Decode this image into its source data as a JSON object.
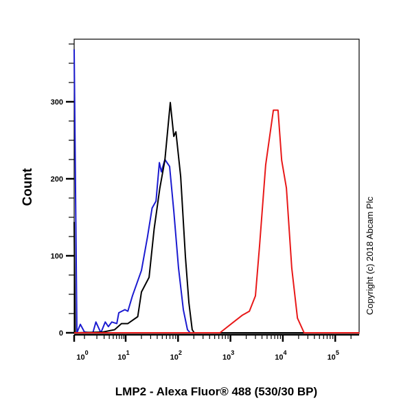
{
  "chart_data": {
    "type": "line",
    "title": "",
    "xlabel": "LMP2 - Alexa Fluor® 488 (530/30 BP)",
    "ylabel": "Count",
    "x_scale": "log (biexponential low end)",
    "xlim": [
      0,
      290000
    ],
    "ylim": [
      0,
      380
    ],
    "y_ticks": [
      0,
      100,
      200,
      300
    ],
    "x_tick_labels": [
      {
        "base": "10",
        "exp": "0",
        "value": 1
      },
      {
        "base": "10",
        "exp": "1",
        "value": 10
      },
      {
        "base": "10",
        "exp": "2",
        "value": 100
      },
      {
        "base": "10",
        "exp": "3",
        "value": 1000
      },
      {
        "base": "10",
        "exp": "4",
        "value": 10000
      },
      {
        "base": "10",
        "exp": "5",
        "value": 100000
      }
    ],
    "grid": false,
    "legend": "none",
    "annotation": "Copyright (c) 2018 Abcam Plc",
    "series": [
      {
        "color": "#1a1ad0",
        "points": [
          [
            0,
            368
          ],
          [
            0.27,
            0
          ],
          [
            0.6,
            11
          ],
          [
            1,
            1
          ],
          [
            1.6,
            0
          ],
          [
            1.9,
            14
          ],
          [
            2.5,
            0
          ],
          [
            3.2,
            14
          ],
          [
            3.8,
            8
          ],
          [
            4.6,
            14
          ],
          [
            6.1,
            12
          ],
          [
            6.8,
            26
          ],
          [
            9.6,
            30
          ],
          [
            11,
            28
          ],
          [
            13.5,
            48
          ],
          [
            20,
            81
          ],
          [
            26,
            124
          ],
          [
            32,
            162
          ],
          [
            38,
            171
          ],
          [
            44,
            221
          ],
          [
            48,
            209
          ],
          [
            56,
            225
          ],
          [
            69,
            216
          ],
          [
            83,
            158
          ],
          [
            102,
            84
          ],
          [
            126,
            30
          ],
          [
            151,
            4
          ],
          [
            170,
            0
          ],
          [
            290000,
            0
          ]
        ]
      },
      {
        "color": "#000000",
        "points": [
          [
            0,
            144
          ],
          [
            0.1,
            0
          ],
          [
            2.8,
            1
          ],
          [
            5.4,
            4
          ],
          [
            7.9,
            12
          ],
          [
            11,
            12
          ],
          [
            17,
            21
          ],
          [
            20,
            53
          ],
          [
            28,
            72
          ],
          [
            35,
            135
          ],
          [
            45,
            188
          ],
          [
            56,
            224
          ],
          [
            71,
            299
          ],
          [
            83,
            255
          ],
          [
            91,
            261
          ],
          [
            112,
            203
          ],
          [
            138,
            99
          ],
          [
            161,
            39
          ],
          [
            186,
            4
          ],
          [
            204,
            0
          ],
          [
            290000,
            0
          ]
        ]
      },
      {
        "color": "#e81818",
        "points": [
          [
            0,
            0
          ],
          [
            630,
            0
          ],
          [
            1150,
            14
          ],
          [
            1700,
            23
          ],
          [
            2300,
            28
          ],
          [
            3000,
            48
          ],
          [
            3600,
            113
          ],
          [
            4700,
            218
          ],
          [
            5500,
            251
          ],
          [
            6600,
            289
          ],
          [
            8100,
            289
          ],
          [
            9500,
            224
          ],
          [
            11700,
            188
          ],
          [
            14800,
            84
          ],
          [
            19000,
            19
          ],
          [
            25500,
            0
          ],
          [
            290000,
            0
          ]
        ]
      }
    ]
  }
}
